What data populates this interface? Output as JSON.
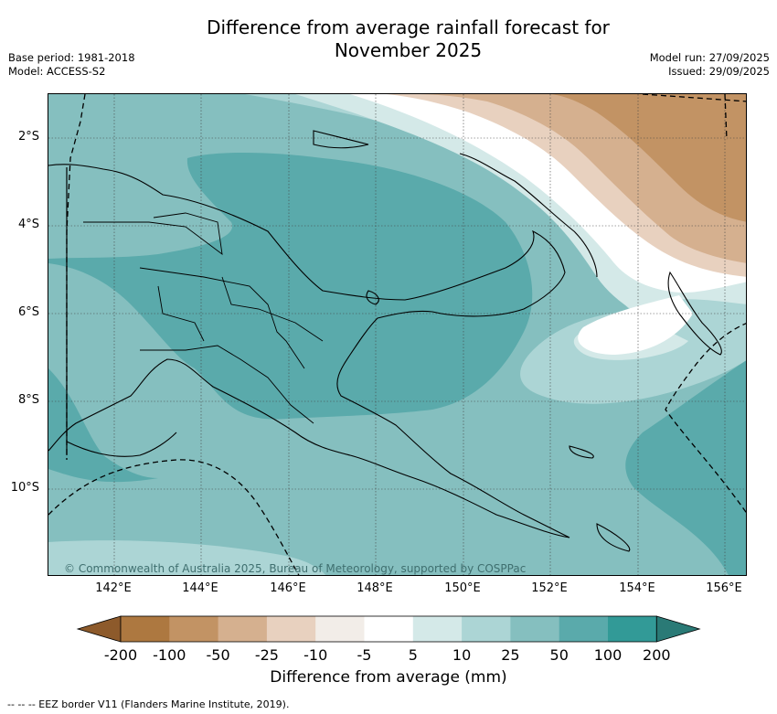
{
  "title_line1": "Difference from average rainfall forecast for",
  "title_line2": "November 2025",
  "meta_left": {
    "base_period": "Base period: 1981-2018",
    "model": "Model: ACCESS-S2"
  },
  "meta_right": {
    "model_run": "Model run: 27/09/2025",
    "issued": "Issued: 29/09/2025"
  },
  "map": {
    "lat_labels": [
      "2°S",
      "4°S",
      "6°S",
      "8°S",
      "10°S"
    ],
    "lon_labels": [
      "142°E",
      "144°E",
      "146°E",
      "148°E",
      "150°E",
      "152°E",
      "154°E",
      "156°E"
    ],
    "copyright": "© Commonwealth of Australia 2025, Bureau of Meteorology, supported by COSPPac"
  },
  "legend": {
    "title": "Difference from average (mm)",
    "tick_labels": [
      "-200",
      "-100",
      "-50",
      "-25",
      "-10",
      "-5",
      "5",
      "10",
      "25",
      "50",
      "100",
      "200"
    ],
    "colors": [
      "#8d5a2b",
      "#ad7840",
      "#c29364",
      "#d5b08f",
      "#e8d1bf",
      "#f2ede8",
      "#ffffff",
      "#d4e9e8",
      "#acd5d5",
      "#85bfbf",
      "#5aaaab",
      "#329a97",
      "#2a7a76"
    ],
    "footnote": "--  --  -- EEZ border V11 (Flanders Marine Institute, 2019)."
  }
}
